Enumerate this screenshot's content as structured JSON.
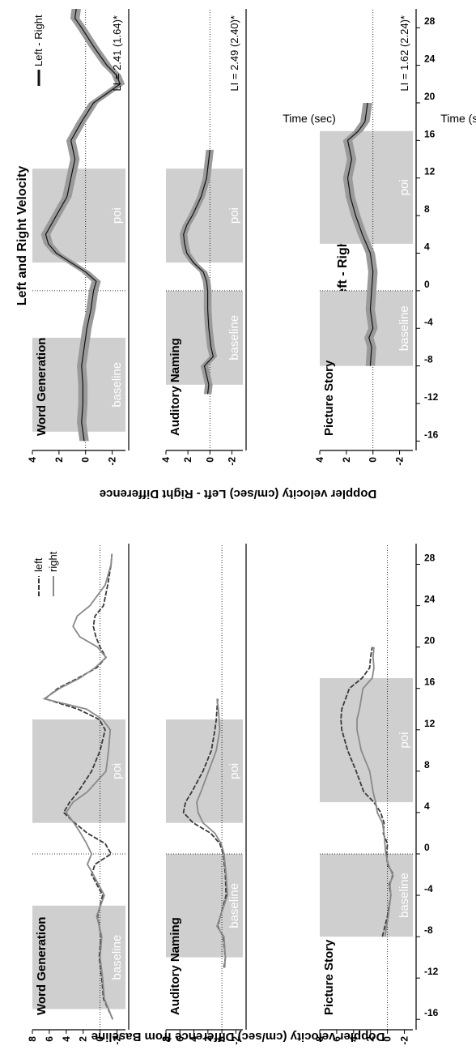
{
  "figure": {
    "left_title": "Left and Right Velocity",
    "right_title": "Left - Right Difference",
    "left_ylabel": "Doppler velocity (cm/sec) Difference from Baseline",
    "right_ylabel": "Doppler velocity (cm/sec) Left - Right  Difference",
    "xlabel": "Time (sec)",
    "baseline_label": "baseline",
    "poi_label": "poi",
    "x_ticks": [
      "-16",
      "-12",
      "-8",
      "-4",
      "0",
      "4",
      "8",
      "12",
      "16",
      "20",
      "24",
      "28"
    ],
    "y_ticks_left": [
      "8",
      "6",
      "4",
      "2",
      "0",
      "-2"
    ],
    "y_ticks_right": [
      "4",
      "2",
      "0",
      "-2"
    ]
  },
  "colors": {
    "band": "#cfcfcf",
    "left_line": "#3a3a3a",
    "right_line": "#8a8a8a",
    "diff_band": "#9a9a9a",
    "diff_line": "#111111"
  },
  "legend_left": {
    "left": "left",
    "right": "right"
  },
  "legend_right": {
    "diff": "Left - Right"
  },
  "tasks": [
    {
      "name": "Word Generation",
      "baseline": [
        -15,
        -5
      ],
      "poi": [
        3,
        13
      ],
      "li": "LI = 2.41 (1.64)*"
    },
    {
      "name": "Auditory Naming",
      "baseline": [
        -10,
        0
      ],
      "poi": [
        3,
        13
      ],
      "li": "LI = 2.49 (2.40)*"
    },
    {
      "name": "Picture Story",
      "baseline": [
        -8,
        0
      ],
      "poi": [
        5,
        17
      ],
      "li": "LI = 1.62 (2.24)*"
    }
  ],
  "chart_data": [
    {
      "type": "line",
      "panel": "Left and Right Velocity – Word Generation",
      "xlabel": "Time (sec)",
      "ylabel": "Doppler velocity (cm/sec) Difference from Baseline",
      "xlim": [
        -17,
        30
      ],
      "ylim": [
        -3,
        8
      ],
      "x": [
        -16,
        -14,
        -12,
        -10,
        -8,
        -6,
        -4,
        -2,
        -1,
        0,
        1,
        2,
        3,
        4,
        5,
        6,
        8,
        10,
        12,
        13,
        14,
        15,
        16,
        17,
        18,
        19,
        20,
        21,
        22,
        23,
        24,
        26,
        28,
        29
      ],
      "series": [
        {
          "name": "left",
          "values": [
            -1.5,
            -0.4,
            -0.2,
            0.1,
            -0.1,
            0.3,
            -0.3,
            1.0,
            0.6,
            -1.3,
            -0.6,
            1.5,
            3.0,
            4.3,
            3.6,
            2.6,
            1.0,
            0.0,
            -0.6,
            0.1,
            2.6,
            6.5,
            5.0,
            2.6,
            0.4,
            -0.7,
            0.0,
            0.5,
            0.8,
            0.6,
            -0.4,
            -0.9,
            -1.3,
            -1.4
          ]
        },
        {
          "name": "right",
          "values": [
            -1.5,
            -0.5,
            -0.3,
            0.0,
            -0.2,
            0.4,
            -0.5,
            0.8,
            1.5,
            1.0,
            1.6,
            2.3,
            3.1,
            4.0,
            3.2,
            1.5,
            -0.7,
            -1.0,
            -1.2,
            -0.3,
            1.6,
            6.6,
            4.8,
            2.4,
            0.6,
            -0.7,
            0.3,
            2.4,
            3.2,
            2.7,
            1.2,
            -0.6,
            -1.3,
            -1.4
          ]
        }
      ]
    },
    {
      "type": "line",
      "panel": "Left and Right Velocity – Auditory Naming",
      "xlim": [
        -17,
        30
      ],
      "ylim": [
        -3,
        8
      ],
      "x": [
        -11,
        -10,
        -8,
        -7,
        -6,
        -4,
        -2,
        0,
        1,
        2,
        3,
        4,
        5,
        6,
        8,
        10,
        12,
        13,
        14,
        15
      ],
      "series": [
        {
          "name": "left",
          "values": [
            -0.3,
            -0.5,
            -0.2,
            0.6,
            0.2,
            -0.6,
            -0.5,
            -0.2,
            0.3,
            1.6,
            4.1,
            5.5,
            5.2,
            4.3,
            2.7,
            1.5,
            1.0,
            0.8,
            0.7,
            0.6
          ]
        },
        {
          "name": "right",
          "values": [
            -0.4,
            -0.5,
            -0.3,
            0.7,
            0.2,
            -0.8,
            -0.6,
            -0.3,
            0.1,
            1.0,
            2.7,
            3.4,
            3.6,
            3.0,
            1.9,
            0.8,
            0.3,
            0.4,
            0.5,
            0.7
          ]
        }
      ]
    },
    {
      "type": "line",
      "panel": "Left and Right Velocity – Picture Story",
      "xlim": [
        -17,
        30
      ],
      "ylim": [
        -3,
        8
      ],
      "x": [
        -8,
        -6,
        -4,
        -3,
        -2,
        -1,
        0,
        1,
        2,
        3,
        4,
        5,
        6,
        8,
        10,
        12,
        13,
        14,
        16,
        17,
        18,
        19,
        20
      ],
      "series": [
        {
          "name": "left",
          "values": [
            0.6,
            0.0,
            -0.4,
            -0.2,
            -0.7,
            0.0,
            0.1,
            0.0,
            0.5,
            0.4,
            0.8,
            1.6,
            2.8,
            3.7,
            4.7,
            5.4,
            5.5,
            5.4,
            4.5,
            3.0,
            2.1,
            2.0,
            1.8
          ]
        },
        {
          "name": "right",
          "values": [
            0.3,
            -0.1,
            -0.4,
            -0.3,
            -0.6,
            -0.1,
            0.2,
            0.3,
            0.4,
            0.6,
            1.2,
            1.4,
            1.7,
            2.1,
            3.1,
            3.6,
            3.6,
            3.3,
            2.9,
            1.8,
            1.6,
            1.7,
            1.6
          ]
        }
      ]
    },
    {
      "type": "line",
      "panel": "Left - Right Difference – Word Generation",
      "xlabel": "Time (sec)",
      "ylabel": "Doppler velocity (cm/sec) Left - Right  Difference",
      "xlim": [
        -17,
        30
      ],
      "ylim": [
        -3,
        4
      ],
      "x": [
        -16,
        -14,
        -12,
        -10,
        -8,
        -6,
        -4,
        -2,
        0,
        1,
        2,
        4,
        5,
        6,
        8,
        10,
        12,
        14,
        16,
        18,
        20,
        21,
        22,
        23,
        24,
        26,
        28,
        29,
        30
      ],
      "series": [
        {
          "name": "Left - Right",
          "values": [
            0.1,
            0.3,
            0.2,
            0.2,
            0.3,
            0.1,
            -0.1,
            -0.4,
            -0.6,
            -0.8,
            0.0,
            2.2,
            2.8,
            3.0,
            2.2,
            1.4,
            1.1,
            0.8,
            1.1,
            0.3,
            -0.6,
            -1.6,
            -2.6,
            -2.3,
            -1.6,
            -0.6,
            0.3,
            0.8,
            0.7
          ]
        }
      ],
      "band": "±SE"
    },
    {
      "type": "line",
      "panel": "Left - Right Difference – Auditory Naming",
      "xlim": [
        -17,
        30
      ],
      "ylim": [
        -3,
        4
      ],
      "x": [
        -11,
        -10,
        -8,
        -7,
        -6,
        -4,
        -2,
        0,
        1,
        2,
        3,
        4,
        5,
        6,
        7,
        8,
        10,
        12,
        14,
        15
      ],
      "series": [
        {
          "name": "Left - Right",
          "values": [
            0.2,
            0.1,
            0.5,
            -0.3,
            -0.1,
            0.1,
            0.2,
            0.2,
            0.3,
            0.6,
            1.5,
            2.1,
            2.3,
            2.4,
            2.1,
            1.6,
            0.8,
            0.3,
            0.1,
            0.0
          ]
        }
      ],
      "band": "±SE"
    },
    {
      "type": "line",
      "panel": "Left - Right Difference – Picture Story",
      "xlim": [
        -17,
        30
      ],
      "ylim": [
        -3,
        4
      ],
      "x": [
        -8,
        -6,
        -5,
        -4,
        -2,
        0,
        2,
        4,
        5,
        6,
        8,
        10,
        12,
        14,
        16,
        17,
        18,
        19,
        20
      ],
      "series": [
        {
          "name": "Left - Right",
          "values": [
            0.2,
            0.1,
            0.3,
            0.0,
            0.2,
            0.1,
            0.0,
            0.2,
            0.5,
            0.8,
            1.3,
            1.7,
            1.9,
            1.6,
            1.9,
            1.1,
            0.6,
            0.5,
            0.4
          ]
        }
      ],
      "band": "±SE"
    }
  ]
}
